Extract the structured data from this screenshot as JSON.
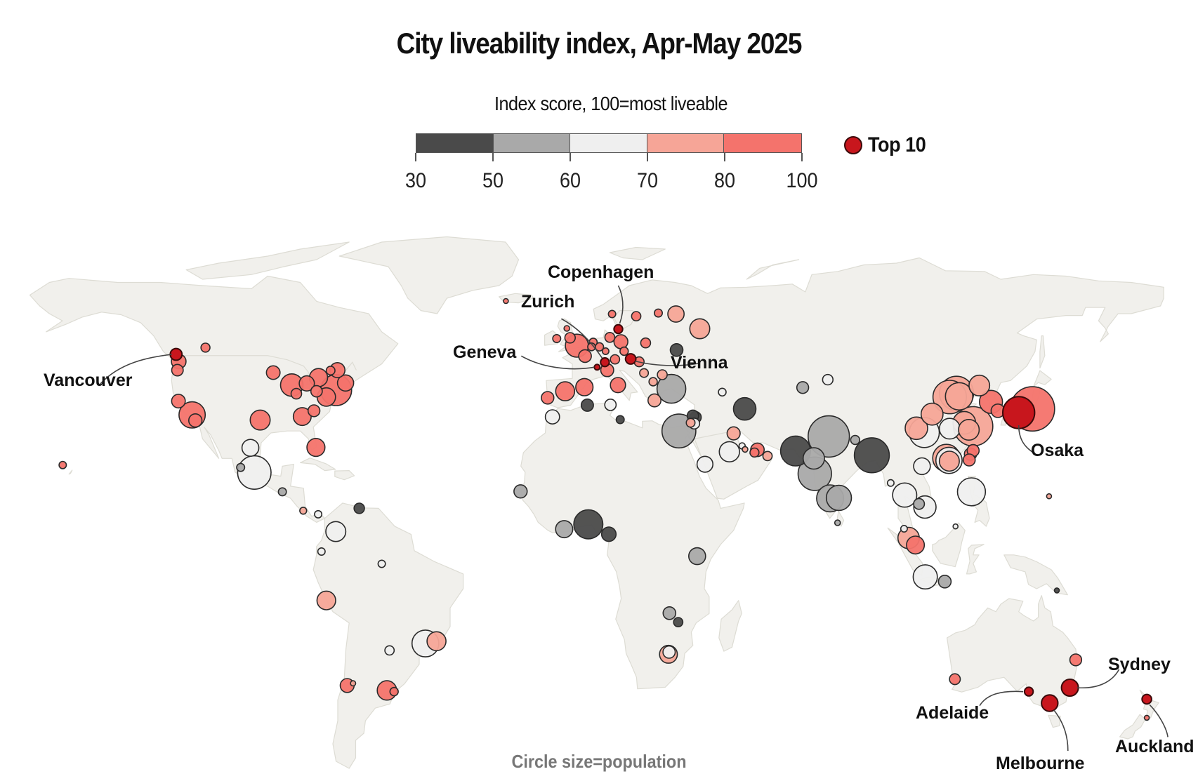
{
  "title": "City liveability index, Apr-May 2025",
  "legend": {
    "title": "Index score, 100=most liveable",
    "bins": [
      {
        "from": 30,
        "to": 50,
        "color": "#4a4a4a"
      },
      {
        "from": 50,
        "to": 60,
        "color": "#a9a9a9"
      },
      {
        "from": 60,
        "to": 70,
        "color": "#efefef"
      },
      {
        "from": 70,
        "to": 80,
        "color": "#f6a597"
      },
      {
        "from": 80,
        "to": 100,
        "color": "#f4736c"
      }
    ],
    "ticks": [
      "30",
      "50",
      "60",
      "70",
      "80",
      "100"
    ],
    "top10_label": "Top 10",
    "top10_color": "#c8161d"
  },
  "footnote": "Circle size=population",
  "colors": {
    "land": "#f1f0ec",
    "land_border": "#dddcd4",
    "ocean": "#ffffff",
    "marker_stroke": "#2a2a2a",
    "leader_line": "#444444"
  },
  "chart_data": {
    "type": "scatter",
    "subtype": "proportional-symbol map",
    "title": "City liveability index, Apr-May 2025",
    "size_encoding": "population",
    "color_encoding": "index score bin",
    "color_bins": [
      "30-50",
      "50-60",
      "60-70",
      "70-80",
      "80-100",
      "top10"
    ],
    "labelled_cities": [
      {
        "name": "Vancouver",
        "lon": -123.1,
        "lat": 49.3,
        "bin": "top10",
        "pop": 2.6
      },
      {
        "name": "Copenhagen",
        "lon": 12.6,
        "lat": 55.7,
        "bin": "top10",
        "pop": 1.4
      },
      {
        "name": "Zurich",
        "lon": 8.5,
        "lat": 47.4,
        "bin": "top10",
        "pop": 1.4
      },
      {
        "name": "Geneva",
        "lon": 6.1,
        "lat": 46.2,
        "bin": "top10",
        "pop": 0.6
      },
      {
        "name": "Vienna",
        "lon": 16.4,
        "lat": 48.2,
        "bin": "top10",
        "pop": 2.0
      },
      {
        "name": "Osaka",
        "lon": 135.5,
        "lat": 34.7,
        "bin": "top10",
        "pop": 19
      },
      {
        "name": "Sydney",
        "lon": 151.2,
        "lat": -33.9,
        "bin": "top10",
        "pop": 5.3
      },
      {
        "name": "Adelaide",
        "lon": 138.6,
        "lat": -34.9,
        "bin": "top10",
        "pop": 1.4
      },
      {
        "name": "Melbourne",
        "lon": 145.0,
        "lat": -37.8,
        "bin": "top10",
        "pop": 5.1
      },
      {
        "name": "Auckland",
        "lon": 174.8,
        "lat": -36.8,
        "bin": "top10",
        "pop": 1.7
      }
    ],
    "cities": [
      {
        "lon": -157.9,
        "lat": 21.3,
        "bin": "80-100",
        "pop": 1.0
      },
      {
        "lon": -122.7,
        "lat": 45.5,
        "bin": "80-100",
        "pop": 2.5
      },
      {
        "lon": -122.3,
        "lat": 47.6,
        "bin": "80-100",
        "pop": 4.0
      },
      {
        "lon": -114.1,
        "lat": 51.0,
        "bin": "80-100",
        "pop": 1.5
      },
      {
        "lon": -122.4,
        "lat": 37.8,
        "bin": "80-100",
        "pop": 3.5
      },
      {
        "lon": -118.2,
        "lat": 34.1,
        "bin": "80-100",
        "pop": 13
      },
      {
        "lon": -117.2,
        "lat": 32.7,
        "bin": "80-100",
        "pop": 3.3
      },
      {
        "lon": -97.3,
        "lat": 32.8,
        "bin": "80-100",
        "pop": 7.5
      },
      {
        "lon": -93.3,
        "lat": 44.9,
        "bin": "80-100",
        "pop": 3.5
      },
      {
        "lon": -87.6,
        "lat": 41.9,
        "bin": "80-100",
        "pop": 9.5
      },
      {
        "lon": -86.2,
        "lat": 39.8,
        "bin": "80-100",
        "pop": 2.1
      },
      {
        "lon": -83.0,
        "lat": 42.3,
        "bin": "80-100",
        "pop": 4.3
      },
      {
        "lon": -84.4,
        "lat": 33.7,
        "bin": "80-100",
        "pop": 6.0
      },
      {
        "lon": -80.8,
        "lat": 35.2,
        "bin": "80-100",
        "pop": 2.6
      },
      {
        "lon": -80.2,
        "lat": 25.8,
        "bin": "80-100",
        "pop": 6.1
      },
      {
        "lon": -79.4,
        "lat": 43.7,
        "bin": "80-100",
        "pop": 6.2
      },
      {
        "lon": -80.0,
        "lat": 40.4,
        "bin": "80-100",
        "pop": 2.4
      },
      {
        "lon": -77.0,
        "lat": 38.9,
        "bin": "80-100",
        "pop": 6.3
      },
      {
        "lon": -75.7,
        "lat": 45.4,
        "bin": "80-100",
        "pop": 1.4
      },
      {
        "lon": -74.0,
        "lat": 40.7,
        "bin": "80-100",
        "pop": 18
      },
      {
        "lon": -73.6,
        "lat": 45.5,
        "bin": "80-100",
        "pop": 4.2
      },
      {
        "lon": -71.1,
        "lat": 42.4,
        "bin": "80-100",
        "pop": 4.9
      },
      {
        "lon": -100.3,
        "lat": 25.7,
        "bin": "60-70",
        "pop": 5.3
      },
      {
        "lon": -103.3,
        "lat": 20.7,
        "bin": "50-60",
        "pop": 1.2
      },
      {
        "lon": -99.1,
        "lat": 19.4,
        "bin": "60-70",
        "pop": 21
      },
      {
        "lon": -90.5,
        "lat": 14.6,
        "bin": "50-60",
        "pop": 1.2
      },
      {
        "lon": -84.1,
        "lat": 9.9,
        "bin": "70-80",
        "pop": 0.9
      },
      {
        "lon": -79.5,
        "lat": 9.0,
        "bin": "60-70",
        "pop": 1.0
      },
      {
        "lon": -66.9,
        "lat": 10.5,
        "bin": "30-50",
        "pop": 2.0
      },
      {
        "lon": -74.1,
        "lat": 4.7,
        "bin": "60-70",
        "pop": 7.5
      },
      {
        "lon": -78.5,
        "lat": -0.2,
        "bin": "60-70",
        "pop": 1.0
      },
      {
        "lon": -60.0,
        "lat": -3.1,
        "bin": "60-70",
        "pop": 1.0
      },
      {
        "lon": -77.0,
        "lat": -12.0,
        "bin": "70-80",
        "pop": 6.5
      },
      {
        "lon": -57.6,
        "lat": -25.3,
        "bin": "60-70",
        "pop": 1.6
      },
      {
        "lon": -46.6,
        "lat": -23.5,
        "bin": "60-70",
        "pop": 13.5
      },
      {
        "lon": -43.2,
        "lat": -22.9,
        "bin": "70-80",
        "pop": 6.7
      },
      {
        "lon": -70.6,
        "lat": -33.4,
        "bin": "80-100",
        "pop": 3.6
      },
      {
        "lon": -68.8,
        "lat": -32.9,
        "bin": "70-80",
        "pop": 0.5
      },
      {
        "lon": -58.4,
        "lat": -34.6,
        "bin": "80-100",
        "pop": 7.0
      },
      {
        "lon": -56.2,
        "lat": -34.9,
        "bin": "80-100",
        "pop": 1.3
      },
      {
        "lon": -21.9,
        "lat": 64.1,
        "bin": "80-100",
        "pop": 0.3
      },
      {
        "lon": 10.7,
        "lat": 59.9,
        "bin": "80-100",
        "pop": 1.0
      },
      {
        "lon": 18.1,
        "lat": 59.3,
        "bin": "80-100",
        "pop": 1.6
      },
      {
        "lon": 24.9,
        "lat": 60.2,
        "bin": "80-100",
        "pop": 1.2
      },
      {
        "lon": 30.3,
        "lat": 59.9,
        "bin": "70-80",
        "pop": 5.0
      },
      {
        "lon": 37.6,
        "lat": 55.8,
        "bin": "70-80",
        "pop": 7.5
      },
      {
        "lon": -6.3,
        "lat": 53.3,
        "bin": "80-100",
        "pop": 1.2
      },
      {
        "lon": -3.2,
        "lat": 55.9,
        "bin": "80-100",
        "pop": 0.6
      },
      {
        "lon": -2.2,
        "lat": 53.5,
        "bin": "80-100",
        "pop": 2.0
      },
      {
        "lon": -0.1,
        "lat": 51.5,
        "bin": "80-100",
        "pop": 10
      },
      {
        "lon": 2.4,
        "lat": 48.9,
        "bin": "80-100",
        "pop": 3.0
      },
      {
        "lon": 4.4,
        "lat": 51.2,
        "bin": "80-100",
        "pop": 1.1
      },
      {
        "lon": 4.9,
        "lat": 52.4,
        "bin": "80-100",
        "pop": 1.2
      },
      {
        "lon": 6.8,
        "lat": 51.2,
        "bin": "80-100",
        "pop": 1.3
      },
      {
        "lon": 10.0,
        "lat": 53.6,
        "bin": "80-100",
        "pop": 1.8
      },
      {
        "lon": 13.4,
        "lat": 52.5,
        "bin": "80-100",
        "pop": 3.6
      },
      {
        "lon": 8.7,
        "lat": 50.1,
        "bin": "80-100",
        "pop": 0.8
      },
      {
        "lon": 11.6,
        "lat": 48.1,
        "bin": "80-100",
        "pop": 1.6
      },
      {
        "lon": 14.4,
        "lat": 50.1,
        "bin": "80-100",
        "pop": 1.3
      },
      {
        "lon": 21.0,
        "lat": 52.2,
        "bin": "80-100",
        "pop": 1.8
      },
      {
        "lon": 19.0,
        "lat": 47.5,
        "bin": "80-100",
        "pop": 1.8
      },
      {
        "lon": 9.2,
        "lat": 45.5,
        "bin": "80-100",
        "pop": 3.1
      },
      {
        "lon": 12.5,
        "lat": 41.9,
        "bin": "80-100",
        "pop": 4.3
      },
      {
        "lon": 26.1,
        "lat": 44.4,
        "bin": "70-80",
        "pop": 1.8
      },
      {
        "lon": 20.5,
        "lat": 44.8,
        "bin": "70-80",
        "pop": 1.4
      },
      {
        "lon": 23.3,
        "lat": 42.7,
        "bin": "70-80",
        "pop": 1.3
      },
      {
        "lon": 23.7,
        "lat": 38.0,
        "bin": "70-80",
        "pop": 3.1
      },
      {
        "lon": 28.9,
        "lat": 41.0,
        "bin": "50-60",
        "pop": 15.5
      },
      {
        "lon": 30.5,
        "lat": 50.4,
        "bin": "30-50",
        "pop": 3.0
      },
      {
        "lon": -9.1,
        "lat": 38.7,
        "bin": "80-100",
        "pop": 2.9
      },
      {
        "lon": -3.7,
        "lat": 40.4,
        "bin": "80-100",
        "pop": 6.7
      },
      {
        "lon": 2.2,
        "lat": 41.4,
        "bin": "80-100",
        "pop": 5.6
      },
      {
        "lon": -7.6,
        "lat": 33.6,
        "bin": "60-70",
        "pop": 3.8
      },
      {
        "lon": 3.1,
        "lat": 36.7,
        "bin": "30-50",
        "pop": 2.8
      },
      {
        "lon": 10.2,
        "lat": 36.8,
        "bin": "60-70",
        "pop": 2.4
      },
      {
        "lon": 13.2,
        "lat": 32.9,
        "bin": "30-50",
        "pop": 1.2
      },
      {
        "lon": 31.2,
        "lat": 30.0,
        "bin": "50-60",
        "pop": 21.5
      },
      {
        "lon": 35.5,
        "lat": 33.9,
        "bin": "30-50",
        "pop": 2.4
      },
      {
        "lon": 35.9,
        "lat": 31.9,
        "bin": "60-70",
        "pop": 2.2
      },
      {
        "lon": 34.8,
        "lat": 32.1,
        "bin": "70-80",
        "pop": 1.4
      },
      {
        "lon": 36.3,
        "lat": 33.5,
        "bin": "30-50",
        "pop": 2.5
      },
      {
        "lon": 44.5,
        "lat": 40.2,
        "bin": "60-70",
        "pop": 1.1
      },
      {
        "lon": 51.4,
        "lat": 35.7,
        "bin": "30-50",
        "pop": 9.5
      },
      {
        "lon": 48.0,
        "lat": 29.4,
        "bin": "70-80",
        "pop": 3.2
      },
      {
        "lon": 46.7,
        "lat": 24.7,
        "bin": "60-70",
        "pop": 7.7
      },
      {
        "lon": 50.6,
        "lat": 26.2,
        "bin": "60-70",
        "pop": 0.7
      },
      {
        "lon": 51.5,
        "lat": 25.3,
        "bin": "70-80",
        "pop": 0.6
      },
      {
        "lon": 54.4,
        "lat": 24.5,
        "bin": "80-100",
        "pop": 1.5
      },
      {
        "lon": 55.3,
        "lat": 25.2,
        "bin": "80-100",
        "pop": 3.4
      },
      {
        "lon": 58.4,
        "lat": 23.6,
        "bin": "70-80",
        "pop": 1.6
      },
      {
        "lon": 39.2,
        "lat": 21.5,
        "bin": "60-70",
        "pop": 4.7
      },
      {
        "lon": 69.2,
        "lat": 41.3,
        "bin": "50-60",
        "pop": 2.6
      },
      {
        "lon": 76.9,
        "lat": 43.2,
        "bin": "60-70",
        "pop": 2.0
      },
      {
        "lon": 67.0,
        "lat": 24.9,
        "bin": "30-50",
        "pop": 16.8
      },
      {
        "lon": 77.2,
        "lat": 28.6,
        "bin": "50-60",
        "pop": 32
      },
      {
        "lon": 72.6,
        "lat": 23.0,
        "bin": "50-60",
        "pop": 8.5
      },
      {
        "lon": 72.9,
        "lat": 19.1,
        "bin": "50-60",
        "pop": 21
      },
      {
        "lon": 85.3,
        "lat": 27.7,
        "bin": "50-60",
        "pop": 1.5
      },
      {
        "lon": 90.4,
        "lat": 23.8,
        "bin": "30-50",
        "pop": 23
      },
      {
        "lon": 77.6,
        "lat": 12.97,
        "bin": "50-60",
        "pop": 13.6
      },
      {
        "lon": 80.3,
        "lat": 13.1,
        "bin": "50-60",
        "pop": 11.8
      },
      {
        "lon": 79.9,
        "lat": 6.9,
        "bin": "50-60",
        "pop": 0.6
      },
      {
        "lon": 96.2,
        "lat": 16.8,
        "bin": "60-70",
        "pop": 0.8
      },
      {
        "lon": 100.5,
        "lat": 13.8,
        "bin": "60-70",
        "pop": 11
      },
      {
        "lon": 105.8,
        "lat": 21.0,
        "bin": "60-70",
        "pop": 5.2
      },
      {
        "lon": 106.7,
        "lat": 10.8,
        "bin": "60-70",
        "pop": 9.3
      },
      {
        "lon": 104.9,
        "lat": 11.6,
        "bin": "50-60",
        "pop": 2.2
      },
      {
        "lon": 121.0,
        "lat": 14.6,
        "bin": "60-70",
        "pop": 14.7
      },
      {
        "lon": 101.7,
        "lat": 3.1,
        "bin": "70-80",
        "pop": 8.6
      },
      {
        "lon": 103.8,
        "lat": 1.35,
        "bin": "80-100",
        "pop": 6.0
      },
      {
        "lon": 100.3,
        "lat": 5.4,
        "bin": "60-70",
        "pop": 0.8
      },
      {
        "lon": 106.8,
        "lat": -6.2,
        "bin": "60-70",
        "pop": 11
      },
      {
        "lon": 112.8,
        "lat": -7.3,
        "bin": "50-60",
        "pop": 3.0
      },
      {
        "lon": 116.1,
        "lat": 5.98,
        "bin": "60-70",
        "pop": 0.3
      },
      {
        "lon": 147.2,
        "lat": -9.4,
        "bin": "30-50",
        "pop": 0.4
      },
      {
        "lon": 104.1,
        "lat": 30.7,
        "bin": "70-80",
        "pop": 9.5
      },
      {
        "lon": 106.5,
        "lat": 29.6,
        "bin": "60-70",
        "pop": 17
      },
      {
        "lon": 116.4,
        "lat": 39.9,
        "bin": "70-80",
        "pop": 21.8
      },
      {
        "lon": 114.3,
        "lat": 38.9,
        "bin": "70-80",
        "pop": 21
      },
      {
        "lon": 117.2,
        "lat": 39.1,
        "bin": "70-80",
        "pop": 14
      },
      {
        "lon": 123.4,
        "lat": 41.8,
        "bin": "70-80",
        "pop": 8.0
      },
      {
        "lon": 114.3,
        "lat": 30.6,
        "bin": "60-70",
        "pop": 8.0
      },
      {
        "lon": 108.9,
        "lat": 34.3,
        "bin": "70-80",
        "pop": 9.0
      },
      {
        "lon": 118.8,
        "lat": 32.1,
        "bin": "70-80",
        "pop": 9.6
      },
      {
        "lon": 121.5,
        "lat": 31.2,
        "bin": "70-80",
        "pop": 29
      },
      {
        "lon": 120.2,
        "lat": 30.3,
        "bin": "70-80",
        "pop": 8.0
      },
      {
        "lon": 113.3,
        "lat": 23.1,
        "bin": "70-80",
        "pop": 14
      },
      {
        "lon": 114.1,
        "lat": 22.5,
        "bin": "60-70",
        "pop": 13
      },
      {
        "lon": 114.2,
        "lat": 22.3,
        "bin": "70-80",
        "pop": 7.5
      },
      {
        "lon": 126.98,
        "lat": 37.6,
        "bin": "80-100",
        "pop": 10
      },
      {
        "lon": 129.1,
        "lat": 35.2,
        "bin": "80-100",
        "pop": 3.4
      },
      {
        "lon": 121.5,
        "lat": 25.0,
        "bin": "80-100",
        "pop": 2.7
      },
      {
        "lon": 120.7,
        "lat": 24.1,
        "bin": "80-100",
        "pop": 2.8
      },
      {
        "lon": 120.3,
        "lat": 22.6,
        "bin": "80-100",
        "pop": 2.7
      },
      {
        "lon": 139.7,
        "lat": 35.7,
        "bin": "80-100",
        "pop": 37
      },
      {
        "lon": 144.8,
        "lat": 13.5,
        "bin": "70-80",
        "pop": 0.1
      },
      {
        "lon": -17.4,
        "lat": 14.7,
        "bin": "50-60",
        "pop": 3.3
      },
      {
        "lon": -4.0,
        "lat": 5.3,
        "bin": "50-60",
        "pop": 5.5
      },
      {
        "lon": 3.4,
        "lat": 6.5,
        "bin": "30-50",
        "pop": 15.9
      },
      {
        "lon": 9.7,
        "lat": 4.05,
        "bin": "30-50",
        "pop": 3.9
      },
      {
        "lon": 36.8,
        "lat": -1.3,
        "bin": "50-60",
        "pop": 5.3
      },
      {
        "lon": 28.3,
        "lat": -15.4,
        "bin": "50-60",
        "pop": 3.0
      },
      {
        "lon": 31.0,
        "lat": -17.8,
        "bin": "30-50",
        "pop": 1.6
      },
      {
        "lon": 28.0,
        "lat": -26.2,
        "bin": "70-80",
        "pop": 6.0
      },
      {
        "lon": 28.2,
        "lat": -25.7,
        "bin": "60-70",
        "pop": 2.8
      },
      {
        "lon": 115.9,
        "lat": -31.95,
        "bin": "80-100",
        "pop": 2.2
      },
      {
        "lon": 153.0,
        "lat": -27.5,
        "bin": "80-100",
        "pop": 2.6
      },
      {
        "lon": 174.8,
        "lat": -41.3,
        "bin": "80-100",
        "pop": 0.4
      }
    ]
  }
}
